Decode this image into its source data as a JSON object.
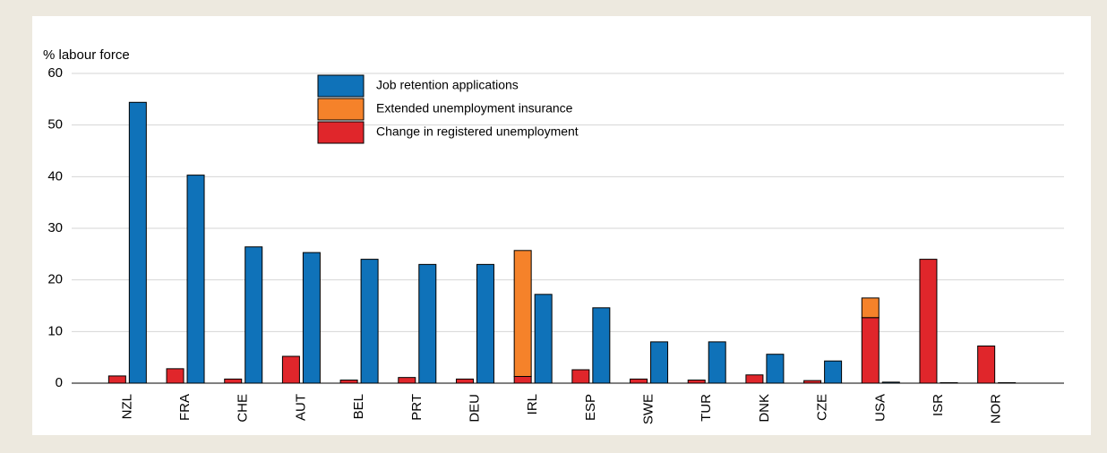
{
  "chart_data": {
    "type": "bar",
    "y_axis_title": "% labour force",
    "categories": [
      "NZL",
      "FRA",
      "CHE",
      "AUT",
      "BEL",
      "PRT",
      "DEU",
      "IRL",
      "ESP",
      "SWE",
      "TUR",
      "DNK",
      "CZE",
      "USA",
      "ISR",
      "NOR"
    ],
    "series": [
      {
        "name": "Job retention applications",
        "color": "#0f72b9",
        "values": [
          54.4,
          40.3,
          26.4,
          25.3,
          24,
          23,
          23,
          17.2,
          14.6,
          8,
          8,
          5.6,
          4.3,
          0.2,
          0.1,
          0.1
        ]
      },
      {
        "name": "Extended unemployment insurance",
        "color": "#f5822a",
        "values": [
          0,
          0,
          0,
          0,
          0,
          0,
          0,
          24.4,
          0,
          0,
          0,
          0,
          0,
          3.8,
          0,
          0
        ]
      },
      {
        "name": "Change in registered unemployment",
        "color": "#e0262b",
        "values": [
          1.4,
          2.8,
          0.8,
          5.2,
          0.6,
          1.1,
          0.8,
          1.3,
          2.6,
          0.8,
          0.6,
          1.6,
          0.5,
          12.7,
          24,
          7.2
        ]
      }
    ],
    "ylim": [
      0,
      60
    ],
    "yticks": [
      0,
      10,
      20,
      30,
      40,
      50,
      60
    ],
    "grid": true
  }
}
